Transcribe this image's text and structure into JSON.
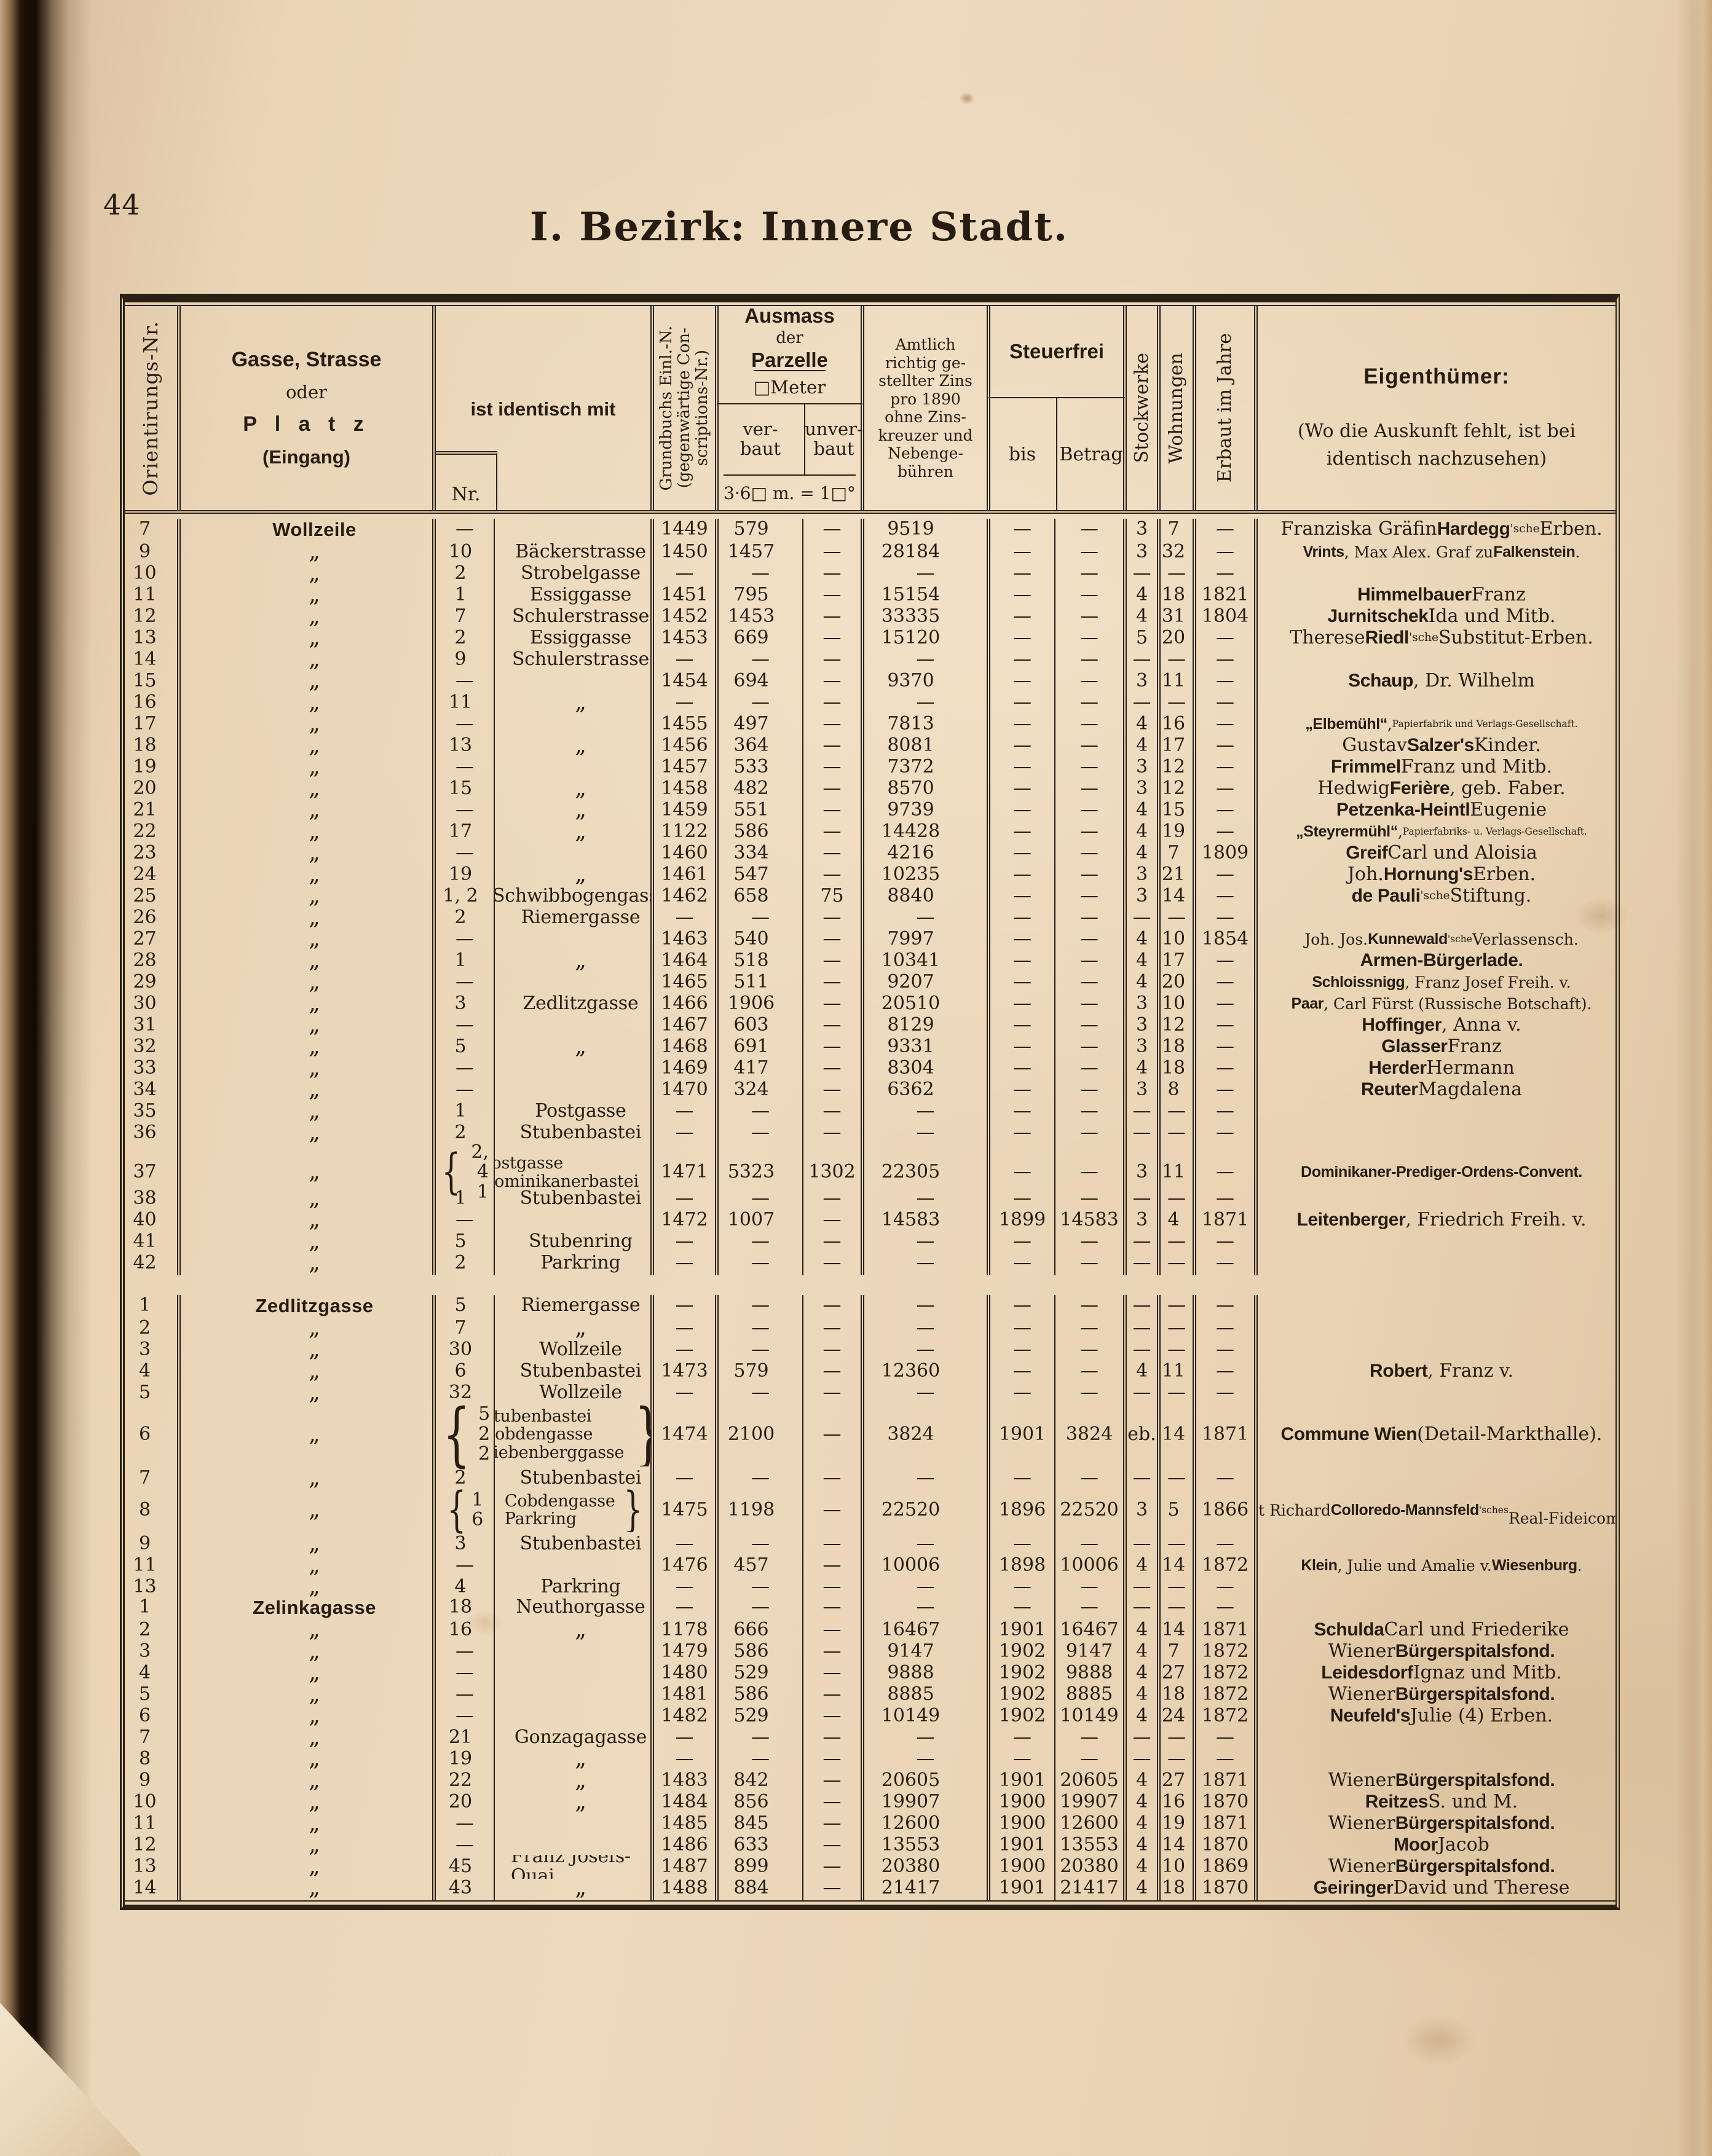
{
  "page": {
    "number": "44",
    "title": "I. Bezirk: Innere Stadt."
  },
  "table": {
    "headers": {
      "orient": "Orientirungs-Nr.",
      "street": {
        "line1": "Gasse, Strasse",
        "line2": "oder",
        "line3": "P l a t z",
        "line4": "(Eingang)"
      },
      "identisch": {
        "label": "ist identisch mit",
        "nr": "Nr."
      },
      "grundbuch": "Grundbuchs Einl.-N.\n(gegenwärtige Con-\nscriptions-Nr.)",
      "ausmass": {
        "title1": "Ausmass",
        "title2": "der",
        "title3": "Parzelle",
        "unit": "□Meter",
        "verbaut": "ver-\nbaut",
        "unverbaut": "unver-\nbaut",
        "conversion": "3·6□ m. = 1□°"
      },
      "zins": "Amtlich\nrichtig ge-\nstellter Zins\npro 1890\nohne Zins-\nkreuzer und\nNebenge-\nbühren",
      "steuerfrei": {
        "label": "Steuerfrei",
        "bis": "bis",
        "betrag": "Betrag"
      },
      "stockwerke": "Stockwerke",
      "wohnungen": "Wohnungen",
      "erbaut": "Erbaut im Jahre",
      "eigenthuemer": {
        "label": "Eigenthümer:",
        "note": "(Wo die Auskunft fehlt, ist bei\nidentisch nachzusehen)"
      }
    },
    "rows": [
      {
        "o": "7",
        "s": "Wollzeile",
        "sec": 1,
        "n": "—",
        "i": "",
        "g": "1449",
        "v": "579",
        "u": "—",
        "z": "9519",
        "b": "—",
        "t": "—",
        "k": "3",
        "w": "7",
        "e": "—",
        "p": "Franziska Gräfin **Hardegg**~~'sche~~ Erben."
      },
      {
        "o": "9",
        "s": "„",
        "n": "10",
        "i": "Bäckerstrasse",
        "g": "1450",
        "v": "1457",
        "u": "—",
        "z": "28184",
        "b": "—",
        "t": "—",
        "k": "3",
        "w": "32",
        "e": "—",
        "p": "**Vrints**, Max Alex. Graf zu **Falkenstein**.",
        "f": 1
      },
      {
        "o": "10",
        "s": "„",
        "n": "2",
        "i": "Strobelgasse",
        "g": "—",
        "v": "—",
        "u": "—",
        "z": "—",
        "b": "—",
        "t": "—",
        "k": "—",
        "w": "—",
        "e": "—",
        "p": ""
      },
      {
        "o": "11",
        "s": "„",
        "n": "1",
        "i": "Essiggasse",
        "g": "1451",
        "v": "795",
        "u": "—",
        "z": "15154",
        "b": "—",
        "t": "—",
        "k": "4",
        "w": "18",
        "e": "1821",
        "p": "**Himmelbauer** Franz"
      },
      {
        "o": "12",
        "s": "„",
        "n": "7",
        "i": "Schulerstrasse",
        "g": "1452",
        "v": "1453",
        "u": "—",
        "z": "33335",
        "b": "—",
        "t": "—",
        "k": "4",
        "w": "31",
        "e": "1804",
        "p": "**Jurnitschek** Ida und Mitb."
      },
      {
        "o": "13",
        "s": "„",
        "n": "2",
        "i": "Essiggasse",
        "g": "1453",
        "v": "669",
        "u": "—",
        "z": "15120",
        "b": "—",
        "t": "—",
        "k": "5",
        "w": "20",
        "e": "—",
        "p": "Therese **Riedl**~~'sche~~ Substitut-Erben."
      },
      {
        "o": "14",
        "s": "„",
        "n": "9",
        "i": "Schulerstrasse",
        "g": "—",
        "v": "—",
        "u": "—",
        "z": "—",
        "b": "—",
        "t": "—",
        "k": "—",
        "w": "—",
        "e": "—",
        "p": ""
      },
      {
        "o": "15",
        "s": "„",
        "n": "—",
        "i": "",
        "g": "1454",
        "v": "694",
        "u": "—",
        "z": "9370",
        "b": "—",
        "t": "—",
        "k": "3",
        "w": "11",
        "e": "—",
        "p": "**Schaup**, Dr. Wilhelm"
      },
      {
        "o": "16",
        "s": "„",
        "n": "11",
        "i": "„",
        "g": "—",
        "v": "—",
        "u": "—",
        "z": "—",
        "b": "—",
        "t": "—",
        "k": "—",
        "w": "—",
        "e": "—",
        "p": ""
      },
      {
        "o": "17",
        "s": "„",
        "n": "—",
        "i": "",
        "g": "1455",
        "v": "497",
        "u": "—",
        "z": "7813",
        "b": "—",
        "t": "—",
        "k": "4",
        "w": "16",
        "e": "—",
        "p": "**„Elbemühl“**, ~~Papierfabrik und Verlags-Gesellschaft.~~",
        "f": 1
      },
      {
        "o": "18",
        "s": "„",
        "n": "13",
        "i": "„",
        "g": "1456",
        "v": "364",
        "u": "—",
        "z": "8081",
        "b": "—",
        "t": "—",
        "k": "4",
        "w": "17",
        "e": "—",
        "p": "Gustav **Salzer's** Kinder."
      },
      {
        "o": "19",
        "s": "„",
        "n": "—",
        "i": "",
        "g": "1457",
        "v": "533",
        "u": "—",
        "z": "7372",
        "b": "—",
        "t": "—",
        "k": "3",
        "w": "12",
        "e": "—",
        "p": "**Frimmel** Franz und Mitb."
      },
      {
        "o": "20",
        "s": "„",
        "n": "15",
        "i": "„",
        "g": "1458",
        "v": "482",
        "u": "—",
        "z": "8570",
        "b": "—",
        "t": "—",
        "k": "3",
        "w": "12",
        "e": "—",
        "p": "Hedwig **Ferière**, geb. Faber."
      },
      {
        "o": "21",
        "s": "„",
        "n": "—",
        "i": "„",
        "g": "1459",
        "v": "551",
        "u": "—",
        "z": "9739",
        "b": "—",
        "t": "—",
        "k": "4",
        "w": "15",
        "e": "—",
        "p": "**Petzenka-Heintl** Eugenie"
      },
      {
        "o": "22",
        "s": "„",
        "n": "17",
        "i": "„",
        "g": "1122",
        "v": "586",
        "u": "—",
        "z": "14428",
        "b": "—",
        "t": "—",
        "k": "4",
        "w": "19",
        "e": "—",
        "p": "**„Steyrermühl“**, ~~Papierfabriks- u. Verlags-Gesellschaft.~~",
        "f": 1
      },
      {
        "o": "23",
        "s": "„",
        "n": "—",
        "i": "",
        "g": "1460",
        "v": "334",
        "u": "—",
        "z": "4216",
        "b": "—",
        "t": "—",
        "k": "4",
        "w": "7",
        "e": "1809",
        "p": "**Greif** Carl und Aloisia"
      },
      {
        "o": "24",
        "s": "„",
        "n": "19",
        "i": "„",
        "g": "1461",
        "v": "547",
        "u": "—",
        "z": "10235",
        "b": "—",
        "t": "—",
        "k": "3",
        "w": "21",
        "e": "—",
        "p": "Joh. **Hornung's** Erben."
      },
      {
        "o": "25",
        "s": "„",
        "n": "1, 2",
        "i": "Schwibbogengasse",
        "g": "1462",
        "v": "658",
        "u": "75",
        "z": "8840",
        "b": "—",
        "t": "—",
        "k": "3",
        "w": "14",
        "e": "—",
        "p": "**de Pauli**~~'sche~~ Stiftung."
      },
      {
        "o": "26",
        "s": "„",
        "n": "2",
        "i": "Riemergasse",
        "g": "—",
        "v": "—",
        "u": "—",
        "z": "—",
        "b": "—",
        "t": "—",
        "k": "—",
        "w": "—",
        "e": "—",
        "p": ""
      },
      {
        "o": "27",
        "s": "„",
        "n": "—",
        "i": "",
        "g": "1463",
        "v": "540",
        "u": "—",
        "z": "7997",
        "b": "—",
        "t": "—",
        "k": "4",
        "w": "10",
        "e": "1854",
        "p": "Joh. Jos. **Kunnewald**~~'sche~~ Verlassensch.",
        "f": 1
      },
      {
        "o": "28",
        "s": "„",
        "n": "1",
        "i": "„",
        "g": "1464",
        "v": "518",
        "u": "—",
        "z": "10341",
        "b": "—",
        "t": "—",
        "k": "4",
        "w": "17",
        "e": "—",
        "p": "**Armen-Bürgerlade.**"
      },
      {
        "o": "29",
        "s": "„",
        "n": "—",
        "i": "",
        "g": "1465",
        "v": "511",
        "u": "—",
        "z": "9207",
        "b": "—",
        "t": "—",
        "k": "4",
        "w": "20",
        "e": "—",
        "p": "**Schloissnigg**, Franz Josef Freih. v.",
        "f": 1
      },
      {
        "o": "30",
        "s": "„",
        "n": "3",
        "i": "Zedlitzgasse",
        "g": "1466",
        "v": "1906",
        "u": "—",
        "z": "20510",
        "b": "—",
        "t": "—",
        "k": "3",
        "w": "10",
        "e": "—",
        "p": "**Paar**, Carl Fürst (Russische Botschaft).",
        "f": 1
      },
      {
        "o": "31",
        "s": "„",
        "n": "—",
        "i": "",
        "g": "1467",
        "v": "603",
        "u": "—",
        "z": "8129",
        "b": "—",
        "t": "—",
        "k": "3",
        "w": "12",
        "e": "—",
        "p": "**Hoffinger**, Anna v."
      },
      {
        "o": "32",
        "s": "„",
        "n": "5",
        "i": "„",
        "g": "1468",
        "v": "691",
        "u": "—",
        "z": "9331",
        "b": "—",
        "t": "—",
        "k": "3",
        "w": "18",
        "e": "—",
        "p": "**Glasser** Franz"
      },
      {
        "o": "33",
        "s": "„",
        "n": "—",
        "i": "",
        "g": "1469",
        "v": "417",
        "u": "—",
        "z": "8304",
        "b": "—",
        "t": "—",
        "k": "4",
        "w": "18",
        "e": "—",
        "p": "**Herder** Hermann"
      },
      {
        "o": "34",
        "s": "„",
        "n": "—",
        "i": "",
        "g": "1470",
        "v": "324",
        "u": "—",
        "z": "6362",
        "b": "—",
        "t": "—",
        "k": "3",
        "w": "8",
        "e": "—",
        "p": "**Reuter** Magdalena"
      },
      {
        "o": "35",
        "s": "„",
        "n": "1",
        "i": "Postgasse",
        "g": "—",
        "v": "—",
        "u": "—",
        "z": "—",
        "b": "—",
        "t": "—",
        "k": "—",
        "w": "—",
        "e": "—",
        "p": ""
      },
      {
        "o": "36",
        "s": "„",
        "n": "2",
        "i": "Stubenbastei",
        "g": "—",
        "v": "—",
        "u": "—",
        "z": "—",
        "b": "—",
        "t": "—",
        "k": "—",
        "w": "—",
        "e": "—",
        "p": ""
      },
      {
        "o": "37",
        "s": "„",
        "br": 2,
        "n": "2, 4\n1",
        "i": "Postgasse\nDominikanerbastei",
        "g": "1471",
        "v": "5323",
        "u": "1302",
        "z": "22305",
        "b": "—",
        "t": "—",
        "k": "3",
        "w": "11",
        "e": "—",
        "p": "**Dominikaner-Prediger-Ordens-Convent.**",
        "f": 1
      },
      {
        "o": "38",
        "s": "„",
        "n": "1",
        "i": "Stubenbastei",
        "g": "—",
        "v": "—",
        "u": "—",
        "z": "—",
        "b": "—",
        "t": "—",
        "k": "—",
        "w": "—",
        "e": "—",
        "p": ""
      },
      {
        "o": "40",
        "s": "„",
        "n": "—",
        "i": "",
        "g": "1472",
        "v": "1007",
        "u": "—",
        "z": "14583",
        "b": "1899",
        "t": "14583",
        "k": "3",
        "w": "4",
        "e": "1871",
        "p": "**Leitenberger**, Friedrich Freih. v."
      },
      {
        "o": "41",
        "s": "„",
        "n": "5",
        "i": "Stubenring",
        "g": "—",
        "v": "—",
        "u": "—",
        "z": "—",
        "b": "—",
        "t": "—",
        "k": "—",
        "w": "—",
        "e": "—",
        "p": ""
      },
      {
        "o": "42",
        "s": "„",
        "n": "2",
        "i": "Parkring",
        "g": "—",
        "v": "—",
        "u": "—",
        "z": "—",
        "b": "—",
        "t": "—",
        "k": "—",
        "w": "—",
        "e": "—",
        "p": ""
      },
      {
        "o": "1",
        "s": "Zedlitzgasse",
        "sec": 1,
        "gap": 1,
        "n": "5",
        "i": "Riemergasse",
        "g": "—",
        "v": "—",
        "u": "—",
        "z": "—",
        "b": "—",
        "t": "—",
        "k": "—",
        "w": "—",
        "e": "—",
        "p": ""
      },
      {
        "o": "2",
        "s": "„",
        "n": "7",
        "i": "„",
        "g": "—",
        "v": "—",
        "u": "—",
        "z": "—",
        "b": "—",
        "t": "—",
        "k": "—",
        "w": "—",
        "e": "—",
        "p": ""
      },
      {
        "o": "3",
        "s": "„",
        "n": "30",
        "i": "Wollzeile",
        "g": "—",
        "v": "—",
        "u": "—",
        "z": "—",
        "b": "—",
        "t": "—",
        "k": "—",
        "w": "—",
        "e": "—",
        "p": ""
      },
      {
        "o": "4",
        "s": "„",
        "n": "6",
        "i": "Stubenbastei",
        "g": "1473",
        "v": "579",
        "u": "—",
        "z": "12360",
        "b": "—",
        "t": "—",
        "k": "4",
        "w": "11",
        "e": "—",
        "p": "**Robert**, Franz v."
      },
      {
        "o": "5",
        "s": "„",
        "n": "32",
        "i": "Wollzeile",
        "g": "—",
        "v": "—",
        "u": "—",
        "z": "—",
        "b": "—",
        "t": "—",
        "k": "—",
        "w": "—",
        "e": "—",
        "p": ""
      },
      {
        "o": "6",
        "s": "„",
        "br": 3,
        "n": "5\n2\n2",
        "i": "Stubenbastei\nCobdengasse\nLiebenberggasse",
        "g": "1474",
        "v": "2100",
        "u": "—",
        "z": "3824",
        "b": "1901",
        "t": "3824",
        "k": "eb.",
        "w": "14",
        "e": "1871",
        "p": "**Commune Wien** (Detail-Markthalle)."
      },
      {
        "o": "7",
        "s": "„",
        "n": "2",
        "i": "Stubenbastei",
        "g": "—",
        "v": "—",
        "u": "—",
        "z": "—",
        "b": "—",
        "t": "—",
        "k": "—",
        "w": "—",
        "e": "—",
        "p": ""
      },
      {
        "o": "8",
        "s": "„",
        "br": 2,
        "n": "1\n6",
        "i": "Cobdengasse\nParkring",
        "g": "1475",
        "v": "1198",
        "u": "—",
        "z": "22520",
        "b": "1896",
        "t": "22520",
        "k": "3",
        "w": "5",
        "e": "1866",
        "p": "Fürst Richard **Colloredo-Mannsfeld**~~'sches~~\nReal-Fideicommiss.",
        "f": 1
      },
      {
        "o": "9",
        "s": "„",
        "n": "3",
        "i": "Stubenbastei",
        "g": "—",
        "v": "—",
        "u": "—",
        "z": "—",
        "b": "—",
        "t": "—",
        "k": "—",
        "w": "—",
        "e": "—",
        "p": ""
      },
      {
        "o": "11",
        "s": "„",
        "n": "—",
        "i": "",
        "g": "1476",
        "v": "457",
        "u": "—",
        "z": "10006",
        "b": "1898",
        "t": "10006",
        "k": "4",
        "w": "14",
        "e": "1872",
        "p": "**Klein**, Julie und Amalie v. **Wiesenburg**.",
        "f": 1
      },
      {
        "o": "13",
        "s": "„",
        "n": "4",
        "i": "Parkring",
        "g": "—",
        "v": "—",
        "u": "—",
        "z": "—",
        "b": "—",
        "t": "—",
        "k": "—",
        "w": "—",
        "e": "—",
        "p": ""
      },
      {
        "o": "1",
        "s": "Zelinkagasse",
        "sec": 1,
        "n": "18",
        "i": "Neuthorgasse",
        "g": "—",
        "v": "—",
        "u": "—",
        "z": "—",
        "b": "—",
        "t": "—",
        "k": "—",
        "w": "—",
        "e": "—",
        "p": ""
      },
      {
        "o": "2",
        "s": "„",
        "n": "16",
        "i": "„",
        "g": "1178",
        "v": "666",
        "u": "—",
        "z": "16467",
        "b": "1901",
        "t": "16467",
        "k": "4",
        "w": "14",
        "e": "1871",
        "p": "**Schulda** Carl und Friederike"
      },
      {
        "o": "3",
        "s": "„",
        "n": "—",
        "i": "",
        "g": "1479",
        "v": "586",
        "u": "—",
        "z": "9147",
        "b": "1902",
        "t": "9147",
        "k": "4",
        "w": "7",
        "e": "1872",
        "p": "Wiener **Bürgerspitalsfond.**"
      },
      {
        "o": "4",
        "s": "„",
        "n": "—",
        "i": "",
        "g": "1480",
        "v": "529",
        "u": "—",
        "z": "9888",
        "b": "1902",
        "t": "9888",
        "k": "4",
        "w": "27",
        "e": "1872",
        "p": "**Leidesdorf** Ignaz und Mitb."
      },
      {
        "o": "5",
        "s": "„",
        "n": "—",
        "i": "",
        "g": "1481",
        "v": "586",
        "u": "—",
        "z": "8885",
        "b": "1902",
        "t": "8885",
        "k": "4",
        "w": "18",
        "e": "1872",
        "p": "Wiener **Bürgerspitalsfond.**"
      },
      {
        "o": "6",
        "s": "„",
        "n": "—",
        "i": "",
        "g": "1482",
        "v": "529",
        "u": "—",
        "z": "10149",
        "b": "1902",
        "t": "10149",
        "k": "4",
        "w": "24",
        "e": "1872",
        "p": "**Neufeld's** Julie (4) Erben."
      },
      {
        "o": "7",
        "s": "„",
        "n": "21",
        "i": "Gonzagagasse",
        "g": "—",
        "v": "—",
        "u": "—",
        "z": "—",
        "b": "—",
        "t": "—",
        "k": "—",
        "w": "—",
        "e": "—",
        "p": ""
      },
      {
        "o": "8",
        "s": "„",
        "n": "19",
        "i": "„",
        "g": "—",
        "v": "—",
        "u": "—",
        "z": "—",
        "b": "—",
        "t": "—",
        "k": "—",
        "w": "—",
        "e": "—",
        "p": ""
      },
      {
        "o": "9",
        "s": "„",
        "n": "22",
        "i": "„",
        "g": "1483",
        "v": "842",
        "u": "—",
        "z": "20605",
        "b": "1901",
        "t": "20605",
        "k": "4",
        "w": "27",
        "e": "1871",
        "p": "Wiener **Bürgerspitalsfond.**"
      },
      {
        "o": "10",
        "s": "„",
        "n": "20",
        "i": "„",
        "g": "1484",
        "v": "856",
        "u": "—",
        "z": "19907",
        "b": "1900",
        "t": "19907",
        "k": "4",
        "w": "16",
        "e": "1870",
        "p": "**Reitzes** S. und M."
      },
      {
        "o": "11",
        "s": "„",
        "n": "—",
        "i": "",
        "g": "1485",
        "v": "845",
        "u": "—",
        "z": "12600",
        "b": "1900",
        "t": "12600",
        "k": "4",
        "w": "19",
        "e": "1871",
        "p": "Wiener **Bürgerspitalsfond.**"
      },
      {
        "o": "12",
        "s": "„",
        "n": "—",
        "i": "",
        "g": "1486",
        "v": "633",
        "u": "—",
        "z": "13553",
        "b": "1901",
        "t": "13553",
        "k": "4",
        "w": "14",
        "e": "1870",
        "p": "**Moor** Jacob"
      },
      {
        "o": "13",
        "s": "„",
        "n": "45",
        "i": "Franz Josefs-Quai",
        "g": "1487",
        "v": "899",
        "u": "—",
        "z": "20380",
        "b": "1900",
        "t": "20380",
        "k": "4",
        "w": "10",
        "e": "1869",
        "p": "Wiener **Bürgerspitalsfond.**"
      },
      {
        "o": "14",
        "s": "„",
        "n": "43",
        "i": "„",
        "g": "1488",
        "v": "884",
        "u": "—",
        "z": "21417",
        "b": "1901",
        "t": "21417",
        "k": "4",
        "w": "18",
        "e": "1870",
        "p": "**Geiringer** David und Therese"
      }
    ]
  }
}
